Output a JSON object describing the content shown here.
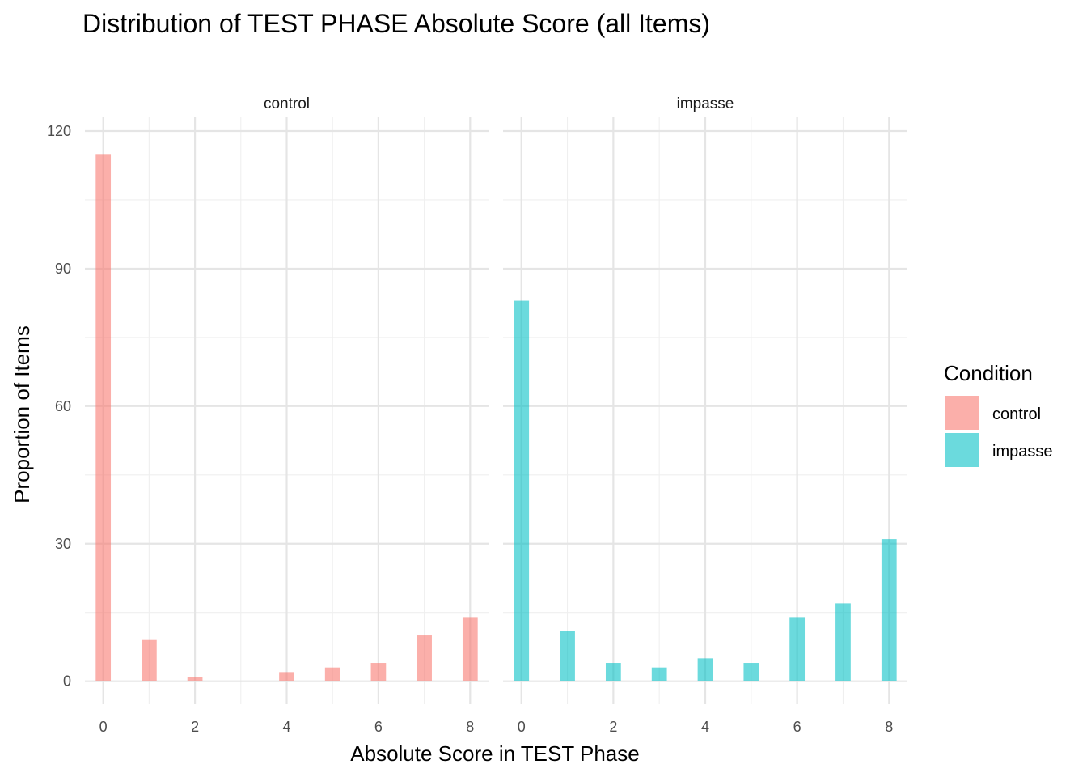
{
  "chart_data": {
    "type": "bar",
    "title": "Distribution of TEST PHASE Absolute Score (all Items)",
    "xlabel": "Absolute Score in TEST Phase",
    "ylabel": "Proportion of Items",
    "xlim": [
      -0.4,
      8.4
    ],
    "ylim": [
      -5,
      123
    ],
    "x_ticks": [
      0,
      2,
      4,
      6,
      8
    ],
    "y_ticks": [
      0,
      30,
      60,
      90,
      120
    ],
    "grid": true,
    "legend": {
      "title": "Condition",
      "placement": "right",
      "entries": [
        {
          "label": "control",
          "color": "#F8766D"
        },
        {
          "label": "impasse",
          "color": "#00BFC4"
        }
      ]
    },
    "facets": [
      {
        "label": "control",
        "color": "#F8766D",
        "x": [
          0,
          1,
          2,
          3,
          4,
          5,
          6,
          7,
          8
        ],
        "values": [
          115,
          9,
          1,
          0,
          2,
          3,
          4,
          10,
          14
        ]
      },
      {
        "label": "impasse",
        "color": "#00BFC4",
        "x": [
          0,
          1,
          2,
          3,
          4,
          5,
          6,
          7,
          8
        ],
        "values": [
          83,
          11,
          4,
          3,
          5,
          4,
          14,
          17,
          31
        ]
      }
    ]
  }
}
